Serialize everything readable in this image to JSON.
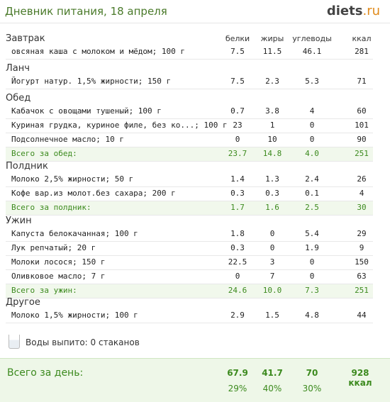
{
  "header": {
    "title": "Дневник питания, 18 апреля",
    "logo_main": "diets",
    "logo_suffix": ".ru"
  },
  "columns": {
    "protein": "белки",
    "fat": "жиры",
    "carbs": "углеводы",
    "kcal": "ккал"
  },
  "meals": {
    "breakfast": {
      "title": "Завтрак",
      "rows": [
        {
          "name": "овсяная каша с молоком и мёдом; 100 г",
          "p": "7.5",
          "f": "11.5",
          "c": "46.1",
          "k": "281"
        }
      ]
    },
    "lunch": {
      "title": "Ланч",
      "rows": [
        {
          "name": "Йогурт натур. 1,5% жирности; 150 г",
          "p": "7.5",
          "f": "2.3",
          "c": "5.3",
          "k": "71"
        }
      ]
    },
    "dinner": {
      "title": "Обед",
      "rows": [
        {
          "name": "Кабачок с овощами тушеный; 100 г",
          "p": "0.7",
          "f": "3.8",
          "c": "4",
          "k": "60"
        },
        {
          "name": "Куриная грудка, куриное филе, без ко...; 100 г",
          "p": "23",
          "f": "1",
          "c": "0",
          "k": "101"
        },
        {
          "name": "Подсолнечное масло; 10 г",
          "p": "0",
          "f": "10",
          "c": "0",
          "k": "90"
        }
      ],
      "total": {
        "label": "Всего за обед:",
        "p": "23.7",
        "f": "14.8",
        "c": "4.0",
        "k": "251"
      }
    },
    "snack": {
      "title": "Полдник",
      "rows": [
        {
          "name": "Молоко 2,5% жирности; 50 г",
          "p": "1.4",
          "f": "1.3",
          "c": "2.4",
          "k": "26"
        },
        {
          "name": "Кофе вар.из молот.без сахара; 200 г",
          "p": "0.3",
          "f": "0.3",
          "c": "0.1",
          "k": "4"
        }
      ],
      "total": {
        "label": "Всего за полдник:",
        "p": "1.7",
        "f": "1.6",
        "c": "2.5",
        "k": "30"
      }
    },
    "supper": {
      "title": "Ужин",
      "rows": [
        {
          "name": "Капуста белокачанная; 100 г",
          "p": "1.8",
          "f": "0",
          "c": "5.4",
          "k": "29"
        },
        {
          "name": "Лук репчатый; 20 г",
          "p": "0.3",
          "f": "0",
          "c": "1.9",
          "k": "9"
        },
        {
          "name": "Молоки лосося; 150 г",
          "p": "22.5",
          "f": "3",
          "c": "0",
          "k": "150"
        },
        {
          "name": "Оливковое масло; 7 г",
          "p": "0",
          "f": "7",
          "c": "0",
          "k": "63"
        }
      ],
      "total": {
        "label": "Всего за ужин:",
        "p": "24.6",
        "f": "10.0",
        "c": "7.3",
        "k": "251"
      }
    },
    "other": {
      "title": "Другое",
      "rows": [
        {
          "name": "Молоко 1,5% жирности; 100 г",
          "p": "2.9",
          "f": "1.5",
          "c": "4.8",
          "k": "44"
        }
      ]
    }
  },
  "water": {
    "text": "Воды выпито: 0 стаканов",
    "icon": "glass-icon"
  },
  "day_total": {
    "label": "Всего за день:",
    "p": "67.9",
    "f": "41.7",
    "c": "70",
    "k": "928 ккал",
    "p_pct": "29%",
    "f_pct": "40%",
    "c_pct": "30%"
  },
  "colors": {
    "accent_green": "#3c8a1e",
    "total_bg": "#f1f8ec",
    "logo_orange": "#e08a1a"
  }
}
